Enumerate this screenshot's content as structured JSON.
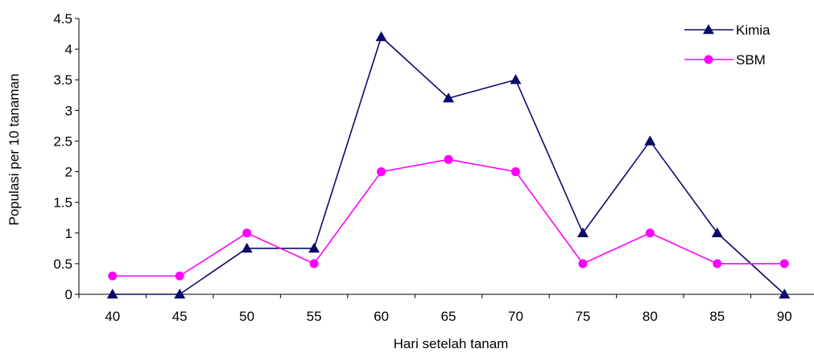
{
  "chart_data": {
    "type": "line",
    "xlabel": "Hari setelah tanam",
    "ylabel": "Populasi per 10 tanaman",
    "x": [
      "40",
      "45",
      "50",
      "55",
      "60",
      "65",
      "70",
      "75",
      "80",
      "85",
      "90"
    ],
    "ylim": [
      0,
      4.5
    ],
    "yticks": [
      "0",
      "0.5",
      "1",
      "1.5",
      "2",
      "2.5",
      "3",
      "3.5",
      "4",
      "4.5"
    ],
    "grid": false,
    "legend_position": "top-right",
    "series": [
      {
        "name": "Kimia",
        "values": [
          0,
          0,
          0.75,
          0.75,
          4.2,
          3.2,
          3.5,
          1,
          2.5,
          1,
          0
        ],
        "color": "#0b0b6b",
        "marker": "triangle"
      },
      {
        "name": "SBM",
        "values": [
          0.3,
          0.3,
          1,
          0.5,
          2,
          2.2,
          2,
          0.5,
          1,
          0.5,
          0.5
        ],
        "color": "#ff00ff",
        "marker": "circle"
      }
    ]
  }
}
